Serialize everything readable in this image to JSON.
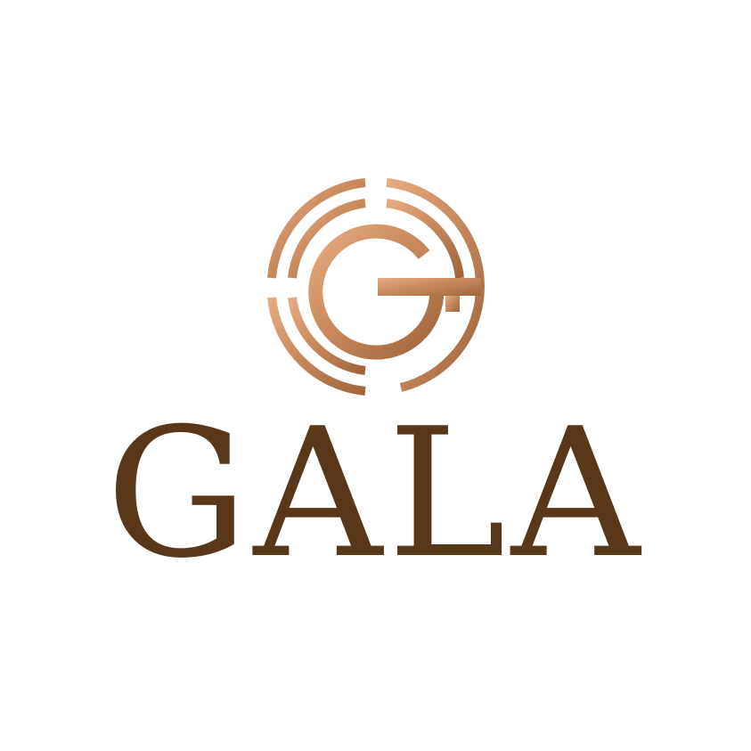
{
  "brand": {
    "name": "GALA",
    "emblem_icon": "g-monogram-circle-icon",
    "colors": {
      "wordmark": "#5a3718",
      "copper_light": "#e2a277",
      "copper_mid": "#c8865a",
      "copper_dark": "#9c6038",
      "background": "#ffffff"
    }
  }
}
